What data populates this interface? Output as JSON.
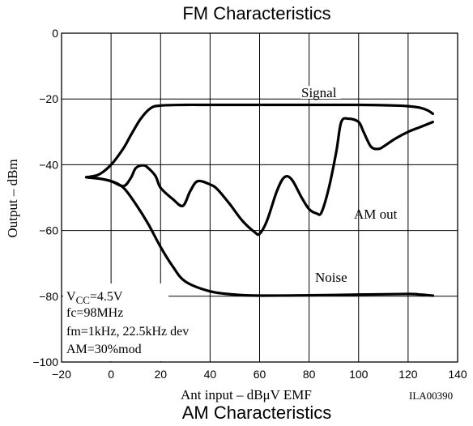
{
  "chart_data": {
    "type": "line",
    "title": "FM Characteristics",
    "footer_title": "AM Characteristics",
    "xlabel": "Ant input – dBμV EMF",
    "ylabel": "Output – dBm",
    "code": "ILA00390",
    "xlim": [
      -20,
      140
    ],
    "ylim": [
      -100,
      0
    ],
    "xticks": [
      "−20",
      "0",
      "20",
      "40",
      "60",
      "80",
      "100",
      "120",
      "140"
    ],
    "yticks": [
      "0",
      "−20",
      "−40",
      "−60",
      "−80",
      "−100"
    ],
    "grid": true,
    "conditions": {
      "vcc_main": "V",
      "vcc_sub": "CC",
      "vcc_value": "=4.5V",
      "fc": "fc=98MHz",
      "fm": "fm=1kHz, 22.5kHz dev",
      "am": "AM=30%mod"
    },
    "series": [
      {
        "name": "Signal",
        "x": [
          -10,
          -5,
          0,
          5,
          8,
          12,
          16,
          20,
          30,
          40,
          60,
          80,
          100,
          115,
          120,
          125,
          128,
          130
        ],
        "y": [
          -43.8,
          -43,
          -40,
          -35,
          -31,
          -26,
          -22.8,
          -22,
          -21.8,
          -21.8,
          -21.8,
          -21.8,
          -21.8,
          -22,
          -22.2,
          -22.7,
          -23.5,
          -24.5
        ]
      },
      {
        "name": "AM out",
        "x": [
          -10,
          -5,
          0,
          5,
          8,
          10,
          13,
          15,
          18,
          20,
          25,
          29,
          32,
          35,
          40,
          43,
          48,
          53,
          58,
          60,
          63,
          67,
          70,
          73,
          77,
          80,
          83,
          85,
          88,
          91,
          93,
          96,
          100,
          102,
          105,
          108,
          110,
          115,
          120,
          125,
          130
        ],
        "y": [
          -43.8,
          -44.2,
          -45,
          -46.5,
          -44,
          -41,
          -40.2,
          -41,
          -43.5,
          -47,
          -50.5,
          -52.5,
          -48,
          -45,
          -46,
          -47.5,
          -52,
          -57,
          -60.5,
          -61,
          -57,
          -48,
          -43.8,
          -44.5,
          -50,
          -53.5,
          -54.8,
          -54.5,
          -47,
          -36,
          -27,
          -26,
          -27,
          -30,
          -34.5,
          -35.2,
          -34.5,
          -32,
          -30,
          -28.5,
          -27
        ]
      },
      {
        "name": "Noise",
        "x": [
          -10,
          -5,
          0,
          5,
          10,
          15,
          20,
          25,
          30,
          40,
          50,
          60,
          80,
          100,
          120,
          125,
          130
        ],
        "y": [
          -43.8,
          -44.2,
          -45,
          -47,
          -52,
          -58,
          -65,
          -71,
          -75.5,
          -78.5,
          -79.5,
          -79.8,
          -79.7,
          -79.5,
          -79.3,
          -79.5,
          -79.8
        ]
      }
    ],
    "annotations": [
      {
        "text": "Signal",
        "series": "Signal"
      },
      {
        "text": "AM out",
        "series": "AM out"
      },
      {
        "text": "Noise",
        "series": "Noise"
      }
    ]
  }
}
